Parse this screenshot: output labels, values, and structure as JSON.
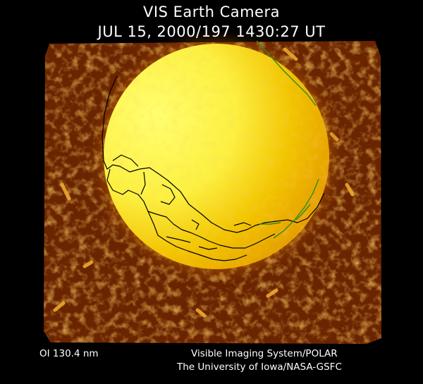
{
  "header": {
    "title": "VIS Earth Camera",
    "timestamp": "JUL 15, 2000/197 1430:27 UT"
  },
  "footer": {
    "wavelength": "OI  130.4 nm",
    "instrument": "Visible Imaging System/POLAR",
    "institution": "The University of Iowa/NASA-GSFC"
  },
  "image": {
    "subject": "earth-disk-far-ultraviolet",
    "palette": {
      "background": "#000000",
      "frame_dark": "#5a1e00",
      "frame_mid": "#b85a00",
      "frame_bright": "#f0a020",
      "disk_bright": "#ffff40",
      "disk_mid": "#f2c800",
      "coastline": "#000000",
      "grid_line": "#2f8a1e"
    }
  }
}
